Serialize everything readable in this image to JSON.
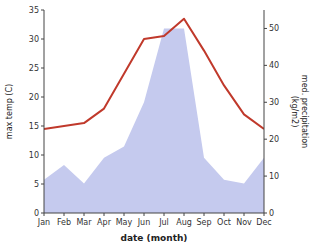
{
  "chart_data": {
    "type": "line",
    "xlabel": "date (month)",
    "ylabel": "max temp (C)",
    "y2label": "med. precipitation\n(kg/m2)",
    "categories": [
      "Jan",
      "Feb",
      "Mar",
      "Apr",
      "May",
      "Jun",
      "Jul",
      "Aug",
      "Sep",
      "Oct",
      "Nov",
      "Dec"
    ],
    "series": [
      {
        "type": "area",
        "axis": "y2",
        "color": "#c5caee",
        "values": [
          9,
          13,
          8,
          15,
          18,
          30,
          50,
          50,
          15,
          9,
          8,
          15
        ]
      },
      {
        "type": "line",
        "color": "#c0392b",
        "values": [
          14.5,
          15.0,
          15.5,
          18.0,
          24.0,
          30.0,
          30.5,
          33.5,
          28.0,
          22.0,
          17.0,
          14.5
        ]
      }
    ],
    "ylim": [
      0,
      35
    ],
    "yticks": [
      0,
      5,
      10,
      15,
      20,
      25,
      30,
      35
    ],
    "y2lim": [
      0,
      55
    ],
    "y2ticks": [
      0,
      10,
      20,
      30,
      40,
      50
    ],
    "grid": false
  }
}
